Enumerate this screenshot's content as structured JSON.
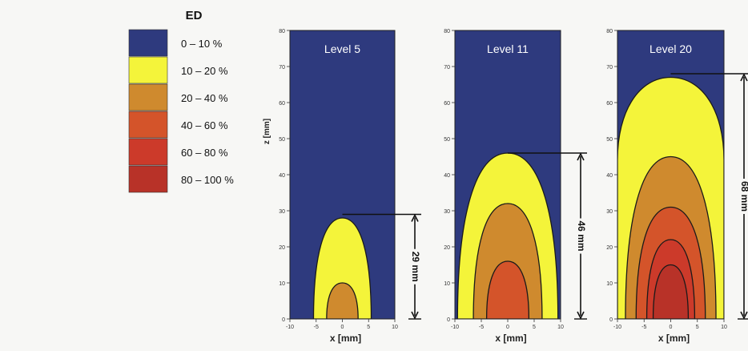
{
  "legend": {
    "title": "ED",
    "items": [
      {
        "label": "0 – 10 %",
        "color": "#2e3a7e"
      },
      {
        "label": "10 – 20 %",
        "color": "#f4f43a"
      },
      {
        "label": "20 – 40 %",
        "color": "#cf8a2e"
      },
      {
        "label": "40 – 60 %",
        "color": "#d4542a"
      },
      {
        "label": "60 – 80 %",
        "color": "#cc3a2a"
      },
      {
        "label": "80 – 100 %",
        "color": "#b83228"
      }
    ]
  },
  "chart_data": [
    {
      "type": "heatmap",
      "title": "Level 5",
      "xlabel": "x [mm]",
      "ylabel": "z [mm]",
      "xlim": [
        -10,
        10
      ],
      "ylim": [
        0,
        80
      ],
      "xticks": [
        -10,
        -5,
        0,
        5,
        10
      ],
      "yticks": [
        0,
        10,
        20,
        30,
        40,
        50,
        60,
        70,
        80
      ],
      "contours": [
        {
          "band": "10 – 20 %",
          "half_width": 5.5,
          "height": 28
        },
        {
          "band": "20 – 40 %",
          "half_width": 3.0,
          "height": 10
        }
      ],
      "annotation": {
        "label": "29 mm",
        "value": 29
      }
    },
    {
      "type": "heatmap",
      "title": "Level 11",
      "xlabel": "x [mm]",
      "ylabel": "",
      "xlim": [
        -10,
        10
      ],
      "ylim": [
        0,
        80
      ],
      "xticks": [
        -10,
        -5,
        0,
        5,
        10
      ],
      "yticks": [
        0,
        10,
        20,
        30,
        40,
        50,
        60,
        70,
        80
      ],
      "contours": [
        {
          "band": "10 – 20 %",
          "half_width": 9.5,
          "height": 46
        },
        {
          "band": "20 – 40 %",
          "half_width": 6.5,
          "height": 32
        },
        {
          "band": "40 – 60 %",
          "half_width": 4.0,
          "height": 16
        }
      ],
      "annotation": {
        "label": "46 mm",
        "value": 46
      }
    },
    {
      "type": "heatmap",
      "title": "Level 20",
      "xlabel": "x [mm]",
      "ylabel": "",
      "xlim": [
        -10,
        10
      ],
      "ylim": [
        0,
        80
      ],
      "xticks": [
        -10,
        -5,
        0,
        5,
        10
      ],
      "yticks": [
        0,
        10,
        20,
        30,
        40,
        50,
        60,
        70,
        80
      ],
      "contours": [
        {
          "band": "10 – 20 %",
          "half_width": 10,
          "height": 67,
          "side_height": 44
        },
        {
          "band": "20 – 40 %",
          "half_width": 8.5,
          "height": 45
        },
        {
          "band": "40 – 60 %",
          "half_width": 6.5,
          "height": 31
        },
        {
          "band": "60 – 80 %",
          "half_width": 4.5,
          "height": 22
        },
        {
          "band": "80 – 100 %",
          "half_width": 3.3,
          "height": 15
        }
      ],
      "annotation": {
        "label": "68 mm",
        "value": 68
      }
    }
  ]
}
